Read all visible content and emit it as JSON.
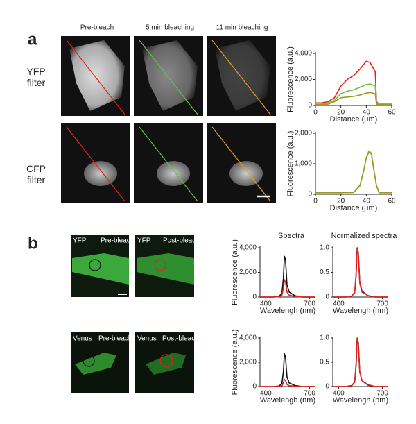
{
  "figure": {
    "panel_a": "a",
    "panel_b": "b",
    "columns": [
      "Pre-bleach",
      "5 min bleaching",
      "11 min bleaching"
    ],
    "rows": [
      "YFP\nfilter",
      "CFP\nfilter"
    ],
    "b_images": [
      [
        "YFP",
        "Pre-bleach"
      ],
      [
        "YFP",
        "Post-bleach"
      ],
      [
        "Venus",
        "Pre-bleach"
      ],
      [
        "Venus",
        "Post-bleach"
      ]
    ]
  },
  "chart_data": [
    {
      "type": "line",
      "x_label": "Distance (μm)",
      "y_label": "Fluorescence (a.u.)",
      "xlim": [
        0,
        60
      ],
      "xticks": [
        0,
        20,
        40,
        60
      ],
      "ylim": [
        0,
        4000
      ],
      "yticks": [
        0,
        {
          "value": 2000,
          "label": "2,000"
        },
        {
          "value": 4000,
          "label": "4,000"
        }
      ],
      "x": [
        0,
        5,
        10,
        15,
        20,
        25,
        30,
        35,
        40,
        43,
        47,
        48,
        50,
        55,
        60
      ],
      "series": [
        {
          "color": "#e8211c",
          "values": [
            200,
            200,
            300,
            600,
            1500,
            2000,
            2300,
            2800,
            3400,
            3300,
            2600,
            300,
            100,
            100,
            100
          ]
        },
        {
          "color": "#6cbf3c",
          "values": [
            100,
            100,
            200,
            400,
            900,
            1100,
            1200,
            1400,
            1600,
            1650,
            1500,
            200,
            100,
            100,
            100
          ]
        },
        {
          "color": "#9c9a1c",
          "values": [
            50,
            50,
            100,
            300,
            600,
            650,
            700,
            800,
            950,
            1000,
            900,
            100,
            50,
            50,
            50
          ]
        }
      ]
    },
    {
      "type": "line",
      "x_label": "Distance (μm)",
      "y_label": "Fluorescence (a.u.)",
      "xlim": [
        0,
        60
      ],
      "xticks": [
        0,
        20,
        40,
        60
      ],
      "ylim": [
        0,
        2000
      ],
      "yticks": [
        0,
        {
          "value": 1000,
          "label": "1,000"
        },
        {
          "value": 2000,
          "label": "2,000"
        }
      ],
      "x": [
        0,
        10,
        20,
        30,
        35,
        38,
        40,
        42,
        44,
        46,
        48,
        50,
        55,
        60
      ],
      "series": [
        {
          "color": "#6cbf3c",
          "values": [
            50,
            50,
            50,
            60,
            300,
            800,
            1200,
            1420,
            1350,
            800,
            300,
            50,
            50,
            50
          ]
        },
        {
          "color": "#9c9a1c",
          "values": [
            50,
            50,
            50,
            60,
            280,
            780,
            1180,
            1380,
            1320,
            780,
            280,
            50,
            50,
            50
          ]
        }
      ]
    },
    {
      "type": "line",
      "title": "Spectra",
      "x_label": "Wavelengh (nm)",
      "y_label": "Fluorescence (a.u.)",
      "xlim": [
        360,
        740
      ],
      "xticks": [
        400,
        700
      ],
      "ylim": [
        0,
        4000
      ],
      "yticks": [
        0,
        {
          "value": 2000,
          "label": "2,000"
        },
        {
          "value": 4000,
          "label": "4,000"
        }
      ],
      "x": [
        360,
        450,
        490,
        510,
        520,
        527,
        535,
        545,
        560,
        600,
        650,
        740
      ],
      "series": [
        {
          "color": "#111111",
          "values": [
            0,
            0,
            50,
            300,
            1500,
            3300,
            3000,
            1000,
            400,
            100,
            0,
            0
          ]
        },
        {
          "color": "#e8211c",
          "values": [
            0,
            0,
            30,
            150,
            700,
            1400,
            1200,
            400,
            150,
            50,
            0,
            0
          ]
        }
      ]
    },
    {
      "type": "line",
      "title": "Normalized spectra",
      "x_label": "Wavelengh (nm)",
      "y_label": "",
      "xlim": [
        360,
        740
      ],
      "xticks": [
        400,
        700
      ],
      "ylim": [
        0,
        1.0
      ],
      "yticks": [
        0,
        0.5,
        {
          "value": 1.0,
          "label": "1.0"
        }
      ],
      "x": [
        360,
        450,
        490,
        510,
        520,
        527,
        535,
        545,
        560,
        600,
        650,
        740
      ],
      "series": [
        {
          "color": "#111111",
          "values": [
            0,
            0,
            0.02,
            0.09,
            0.45,
            1.0,
            0.9,
            0.3,
            0.12,
            0.03,
            0,
            0
          ]
        },
        {
          "color": "#e8211c",
          "values": [
            0,
            0,
            0.02,
            0.1,
            0.5,
            1.0,
            0.86,
            0.28,
            0.1,
            0.03,
            0,
            0
          ]
        }
      ]
    },
    {
      "type": "line",
      "x_label": "Wavelengh (nm)",
      "y_label": "Fluorescence (a.u.)",
      "xlim": [
        360,
        740
      ],
      "xticks": [
        400,
        700
      ],
      "ylim": [
        0,
        4000
      ],
      "yticks": [
        0,
        {
          "value": 2000,
          "label": "2,000"
        },
        {
          "value": 4000,
          "label": "4,000"
        }
      ],
      "x": [
        360,
        450,
        490,
        510,
        520,
        527,
        535,
        545,
        560,
        600,
        650,
        740
      ],
      "series": [
        {
          "color": "#111111",
          "values": [
            0,
            0,
            40,
            250,
            1200,
            2700,
            2400,
            800,
            300,
            80,
            0,
            0
          ]
        },
        {
          "color": "#e8211c",
          "values": [
            0,
            0,
            10,
            60,
            300,
            600,
            500,
            180,
            70,
            20,
            0,
            0
          ]
        }
      ]
    },
    {
      "type": "line",
      "x_label": "Wavelengh (nm)",
      "y_label": "",
      "xlim": [
        360,
        740
      ],
      "xticks": [
        400,
        700
      ],
      "ylim": [
        0,
        1.0
      ],
      "yticks": [
        0,
        0.5,
        {
          "value": 1.0,
          "label": "1.0"
        }
      ],
      "x": [
        360,
        450,
        490,
        510,
        520,
        527,
        535,
        545,
        560,
        600,
        650,
        740
      ],
      "series": [
        {
          "color": "#111111",
          "values": [
            0,
            0,
            0.02,
            0.09,
            0.45,
            1.0,
            0.9,
            0.3,
            0.12,
            0.03,
            0,
            0
          ]
        },
        {
          "color": "#e8211c",
          "values": [
            0,
            0,
            0.02,
            0.1,
            0.5,
            1.0,
            0.85,
            0.3,
            0.12,
            0.04,
            0,
            0
          ]
        }
      ]
    }
  ]
}
